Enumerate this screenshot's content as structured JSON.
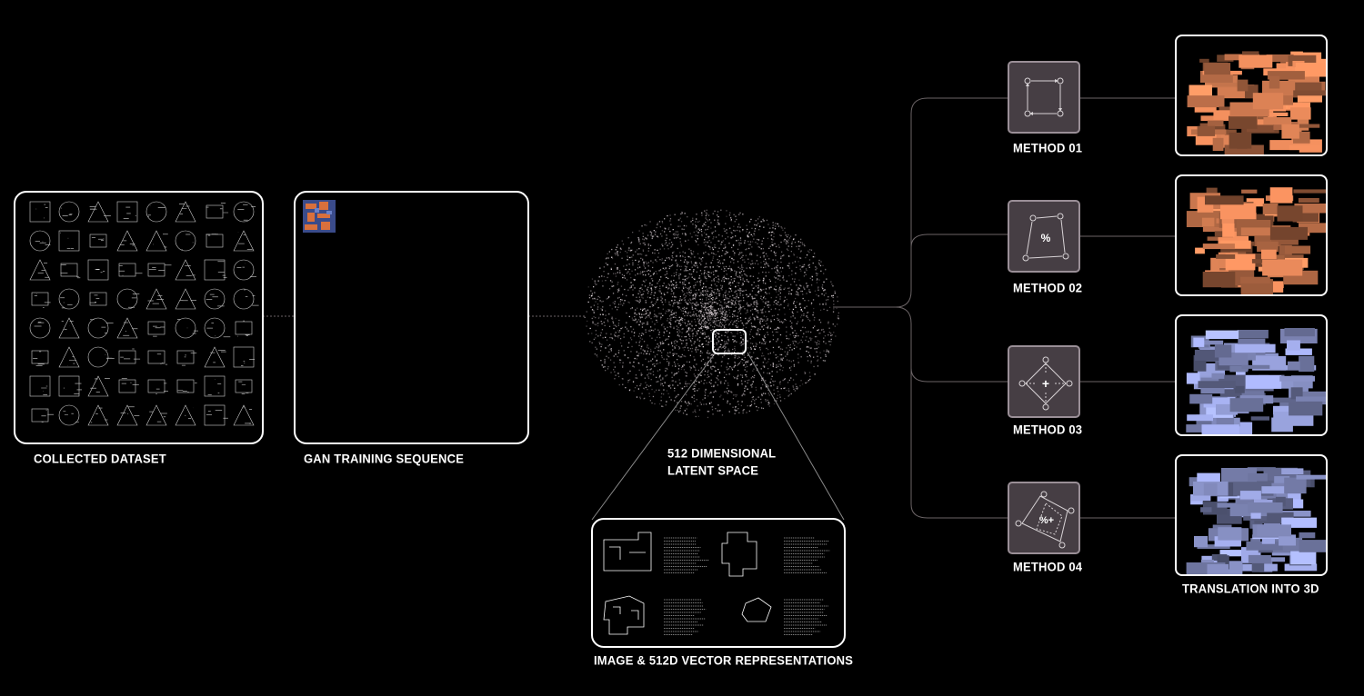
{
  "labels": {
    "collected_dataset": "COLLECTED DATASET",
    "gan_training": "GAN TRAINING SEQUENCE",
    "latent_space_line1": "512 DIMENSIONAL",
    "latent_space_line2": "LATENT SPACE",
    "vector_representations": "IMAGE & 512D VECTOR REPRESENTATIONS",
    "translation_3d": "TRANSLATION INTO 3D"
  },
  "methods": [
    {
      "label": "METHOD 01",
      "symbol": "",
      "icon": "square-loop-icon",
      "color": "#e8895a"
    },
    {
      "label": "METHOD 02",
      "symbol": "%",
      "icon": "percent-loop-icon",
      "color": "#e8895a"
    },
    {
      "label": "METHOD 03",
      "symbol": "+",
      "icon": "plus-diamond-icon",
      "color": "#9fa9e6"
    },
    {
      "label": "METHOD 04",
      "symbol": "%+",
      "icon": "percent-plus-loop-icon",
      "color": "#9fa9e6"
    }
  ],
  "colors": {
    "background": "#000000",
    "method_box": "#463e44",
    "connector": "#6b6466",
    "orange_model": "#e8895a",
    "blue_model": "#9fa9e6"
  }
}
